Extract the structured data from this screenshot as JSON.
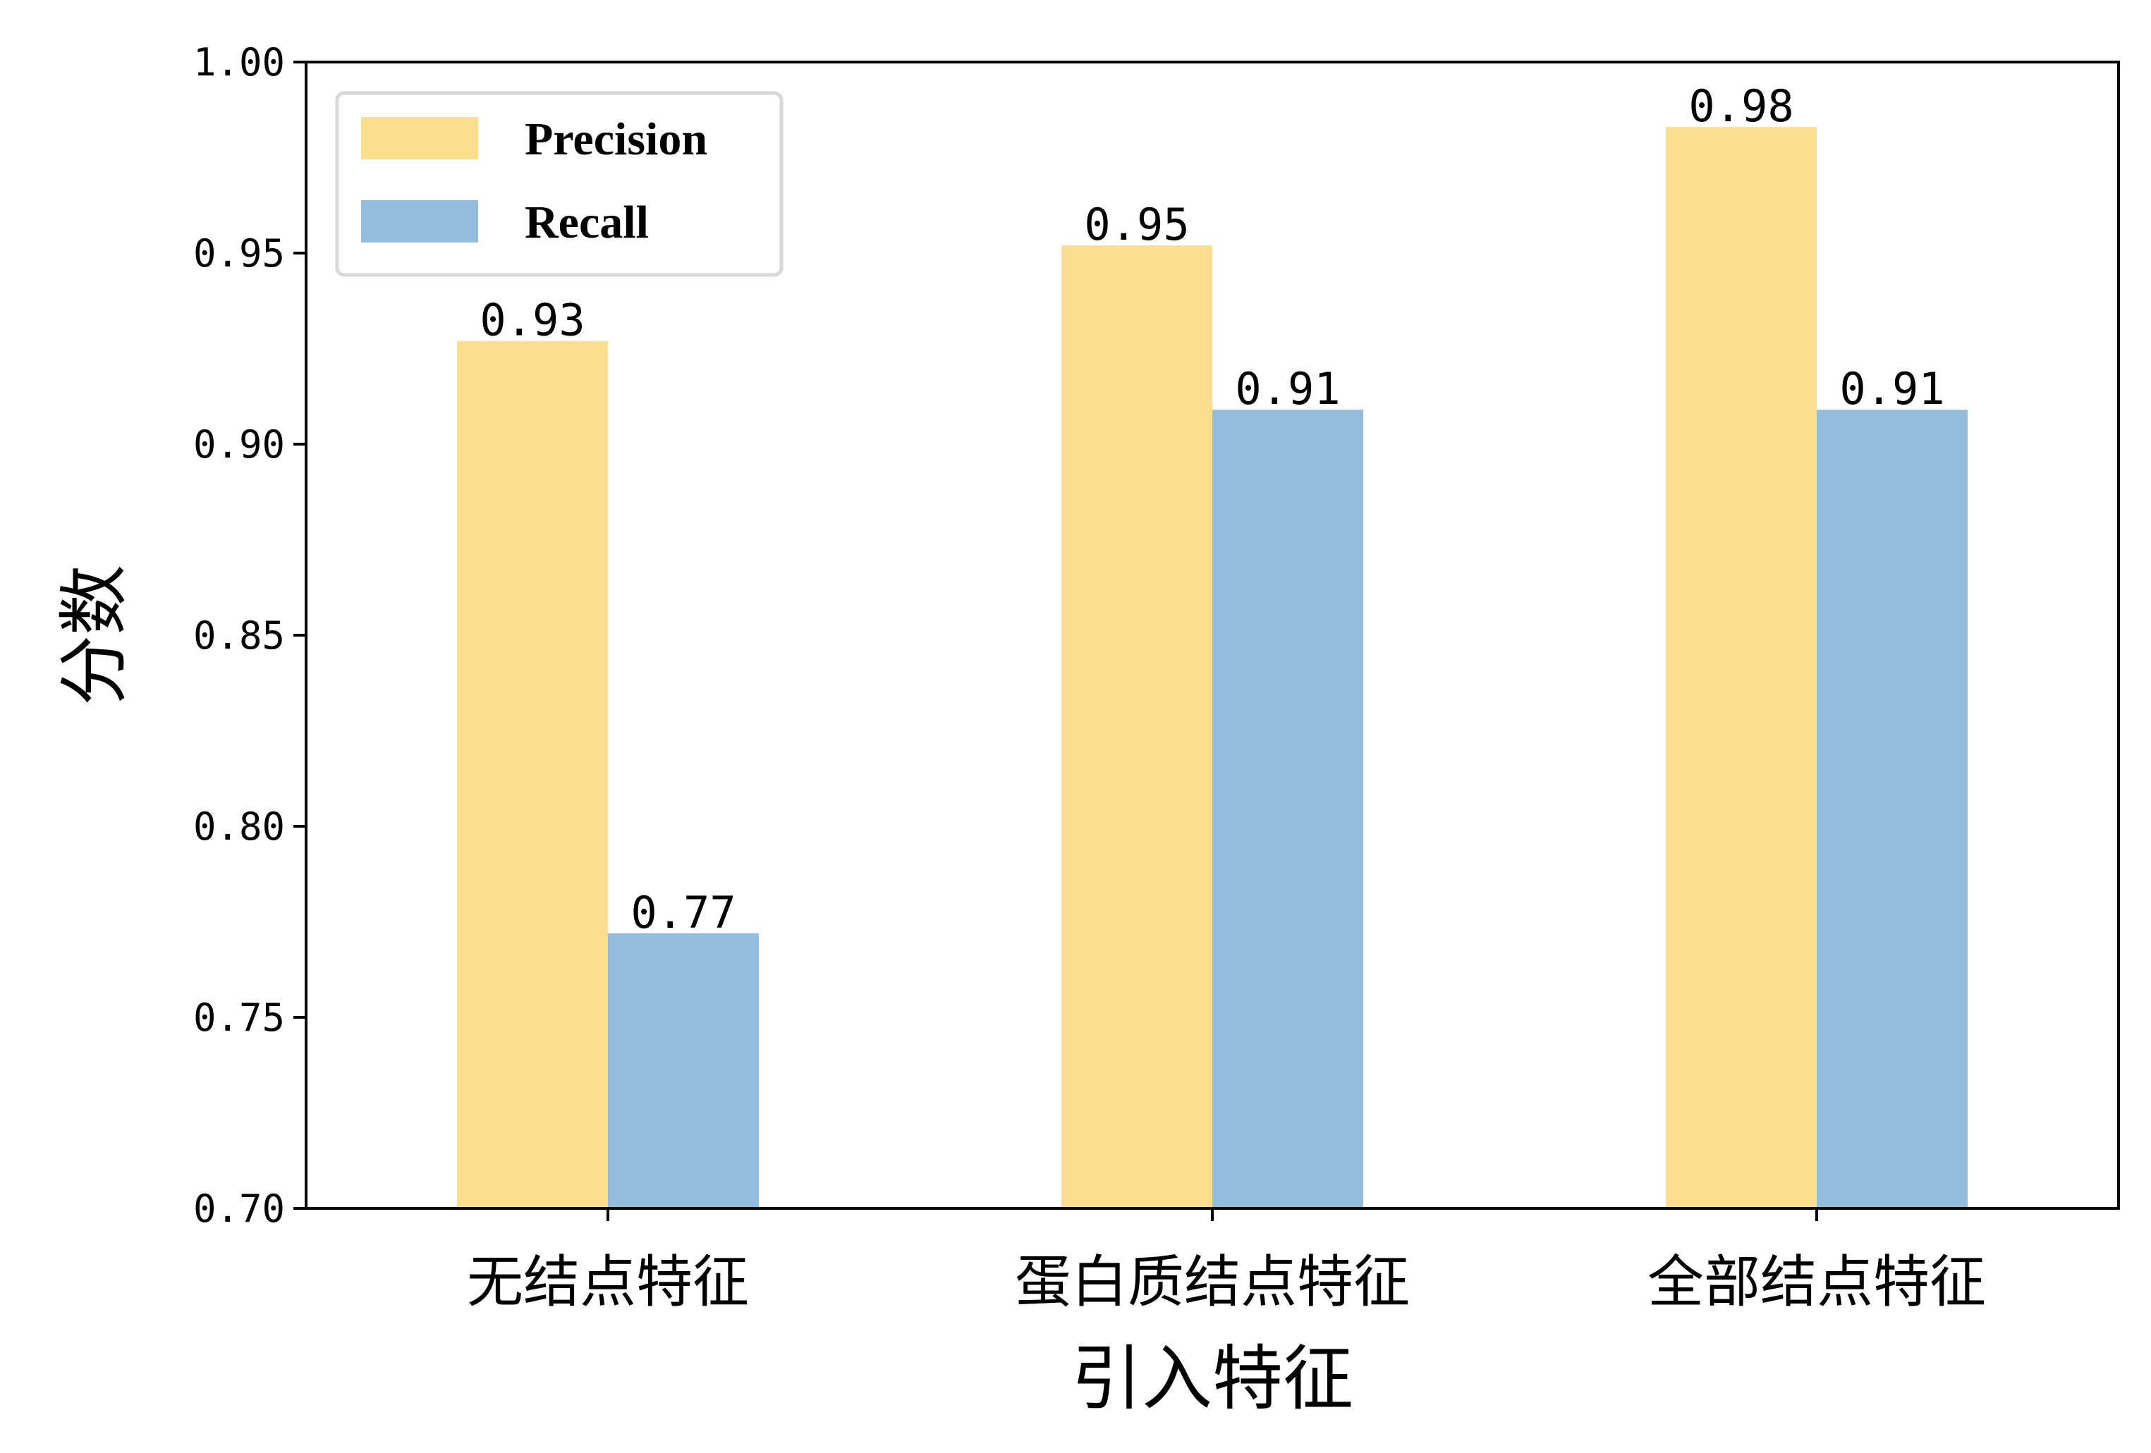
{
  "chart_data": {
    "type": "bar",
    "categories": [
      "无结点特征",
      "蛋白质结点特征",
      "全部结点特征"
    ],
    "series": [
      {
        "name": "Precision",
        "values": [
          0.927,
          0.952,
          0.983
        ],
        "labels": [
          "0.93",
          "0.95",
          "0.98"
        ],
        "color": "#fdde91"
      },
      {
        "name": "Recall",
        "values": [
          0.772,
          0.909,
          0.909
        ],
        "labels": [
          "0.77",
          "0.91",
          "0.91"
        ],
        "color": "#93bddf"
      }
    ],
    "xlabel": "引入特征",
    "ylabel": "分数",
    "ylim": [
      0.7,
      1.0
    ],
    "yticks": [
      "0.70",
      "0.75",
      "0.80",
      "0.85",
      "0.90",
      "0.95",
      "1.00"
    ],
    "legend_position": "top-left",
    "grid": false
  }
}
